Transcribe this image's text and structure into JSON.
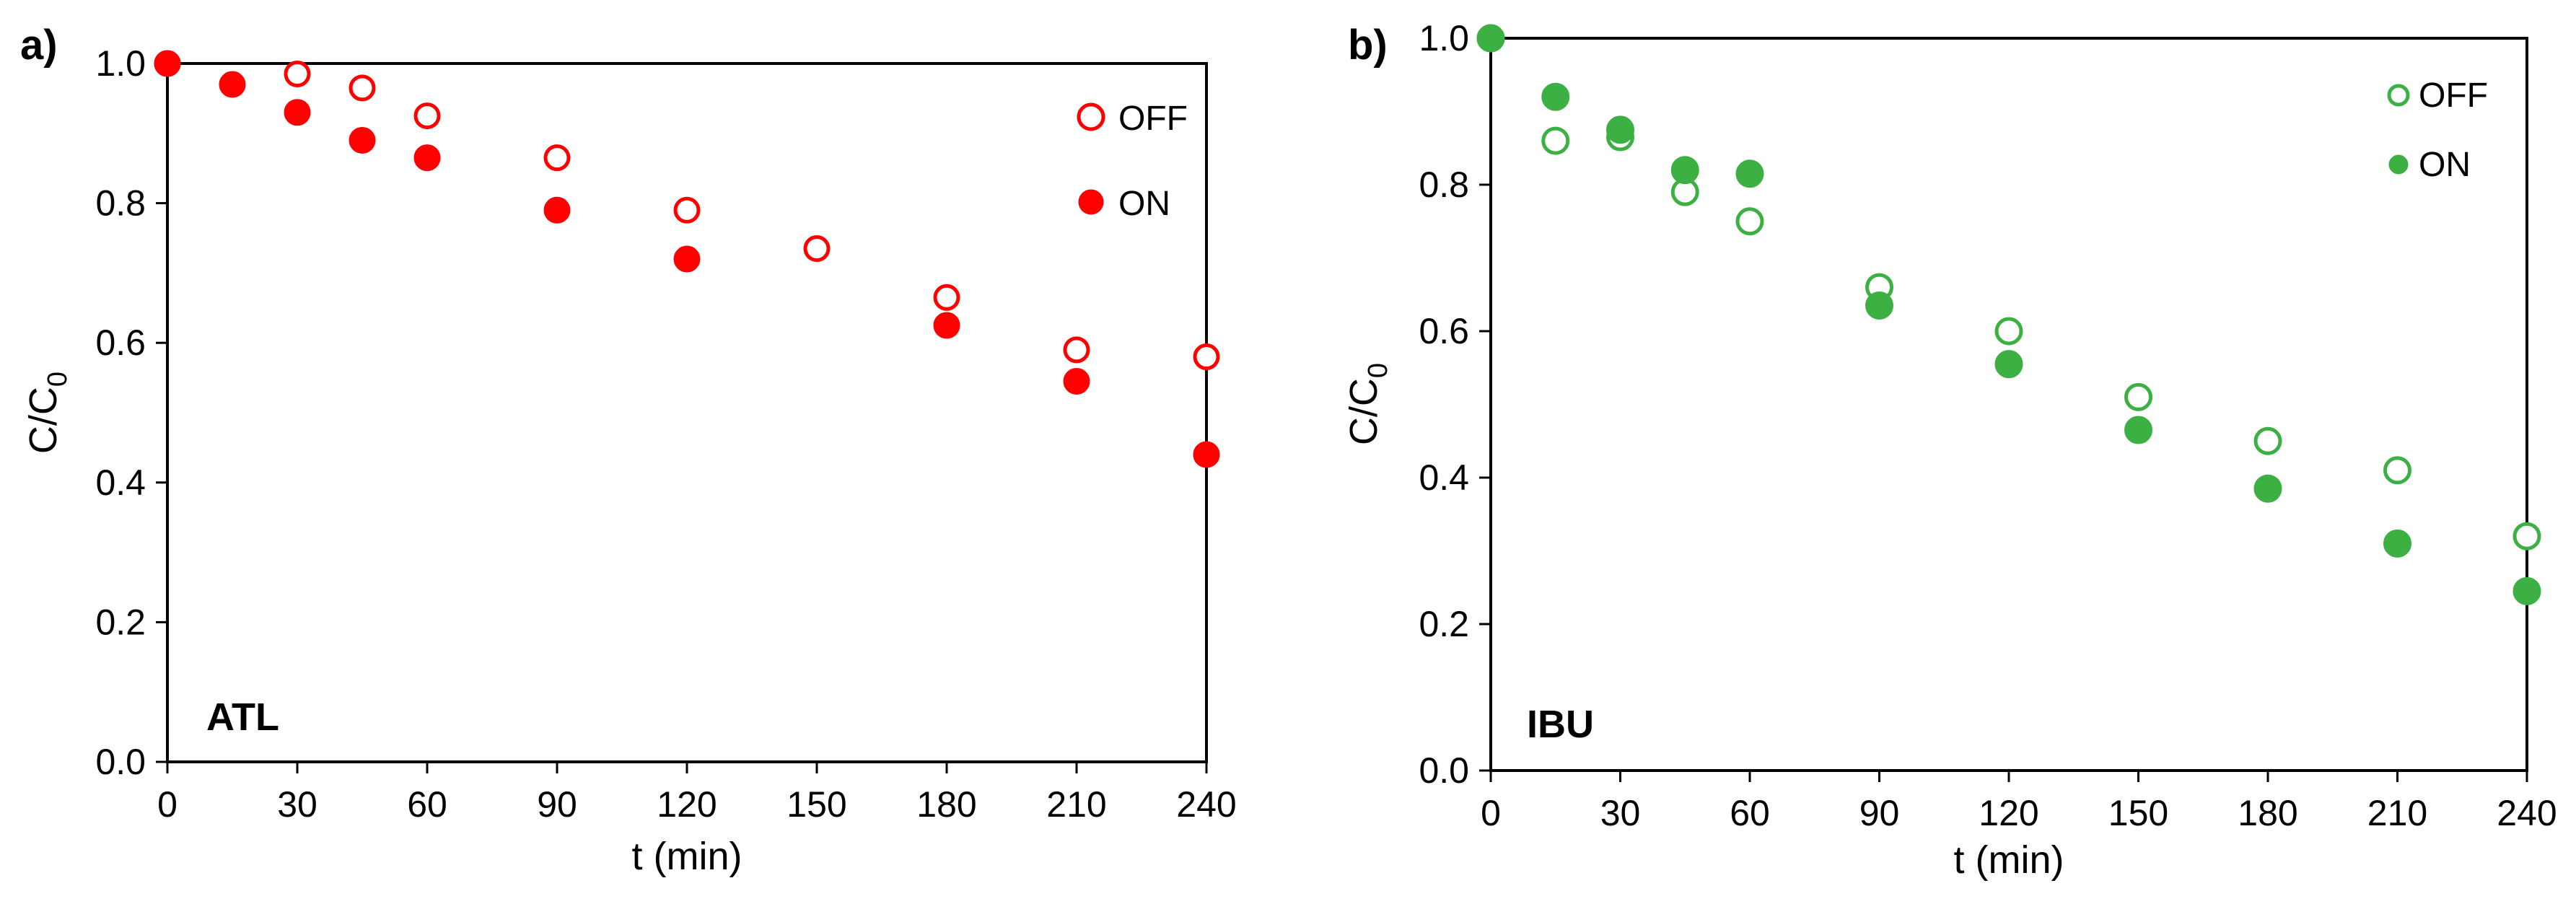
{
  "chart_data": [
    {
      "type": "scatter",
      "panel_label": "a)",
      "compound_label": "ATL",
      "xlabel": "t (min)",
      "ylabel": {
        "main": "C/C",
        "sub": "0"
      },
      "xlim": [
        0,
        240
      ],
      "ylim": [
        0,
        1.0
      ],
      "x_ticks": [
        0,
        30,
        60,
        90,
        120,
        150,
        180,
        210,
        240
      ],
      "y_ticks": [
        "0.0",
        "0.2",
        "0.4",
        "0.6",
        "0.8",
        "1.0"
      ],
      "grid": false,
      "legend_position": "top-right",
      "color": "#ff0000",
      "series": [
        {
          "name": "OFF",
          "marker": "open-circle",
          "x": [
            0,
            30,
            45,
            60,
            90,
            120,
            150,
            180,
            210,
            240
          ],
          "y": [
            1.0,
            0.985,
            0.965,
            0.925,
            0.865,
            0.79,
            0.735,
            0.665,
            0.59,
            0.58
          ]
        },
        {
          "name": "ON",
          "marker": "filled-circle",
          "x": [
            0,
            15,
            30,
            45,
            60,
            90,
            120,
            180,
            210,
            240
          ],
          "y": [
            1.0,
            0.97,
            0.93,
            0.89,
            0.865,
            0.79,
            0.72,
            0.625,
            0.545,
            0.44
          ]
        }
      ]
    },
    {
      "type": "scatter",
      "panel_label": "b)",
      "compound_label": "IBU",
      "xlabel": "t (min)",
      "ylabel": {
        "main": "C/C",
        "sub": "0"
      },
      "xlim": [
        0,
        240
      ],
      "ylim": [
        0,
        1.0
      ],
      "x_ticks": [
        0,
        30,
        60,
        90,
        120,
        150,
        180,
        210,
        240
      ],
      "y_ticks": [
        "0.0",
        "0.2",
        "0.4",
        "0.6",
        "0.8",
        "1.0"
      ],
      "grid": false,
      "legend_position": "top-right",
      "color": "#3cb043",
      "series": [
        {
          "name": "OFF",
          "marker": "open-circle",
          "x": [
            0,
            15,
            30,
            45,
            60,
            90,
            120,
            150,
            180,
            210,
            240
          ],
          "y": [
            1.0,
            0.86,
            0.865,
            0.79,
            0.75,
            0.66,
            0.6,
            0.51,
            0.45,
            0.41,
            0.32
          ]
        },
        {
          "name": "ON",
          "marker": "filled-circle",
          "x": [
            0,
            15,
            30,
            45,
            60,
            90,
            120,
            150,
            180,
            210,
            240
          ],
          "y": [
            1.0,
            0.92,
            0.875,
            0.82,
            0.815,
            0.635,
            0.555,
            0.465,
            0.385,
            0.31,
            0.245
          ]
        }
      ]
    }
  ]
}
